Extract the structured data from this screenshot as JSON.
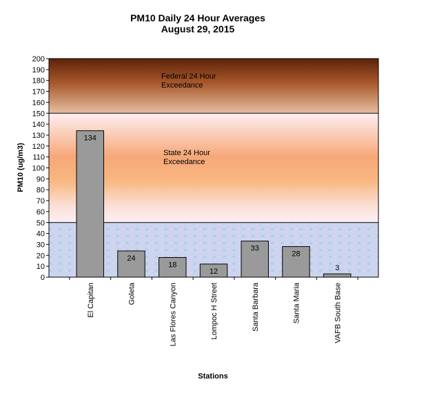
{
  "chart_data": {
    "type": "bar",
    "title": "PM10 Daily 24 Hour Averages",
    "subtitle": "August 29, 2015",
    "xlabel": "Stations",
    "ylabel": "PM10 (ug/m3)",
    "ylim": [
      0,
      200
    ],
    "ytick_step": 10,
    "categories": [
      "El Capitan",
      "Goleta",
      "Las Flores Canyon",
      "Lompoc H Street",
      "Santa Barbara",
      "Santa Maria",
      "VAFB South Base"
    ],
    "values": [
      134,
      24,
      18,
      12,
      33,
      28,
      3
    ],
    "data_labels": [
      "134",
      "24",
      "18",
      "12",
      "33",
      "28",
      "3"
    ],
    "thresholds": [
      {
        "name": "Federal 24 Hour Exceedance",
        "value": 150,
        "label_line1": "Federal 24 Hour",
        "label_line2": "Exceedance"
      },
      {
        "name": "State 24 Hour Exceedance",
        "value": 50,
        "label_line1": "State 24 Hour",
        "label_line2": "Exceedance"
      }
    ],
    "colors": {
      "bar": "#9a9a9a",
      "federal_zone_top": "#6b2a0c",
      "federal_zone_bottom": "#e2b595",
      "state_zone_mid": "#f6a878",
      "state_zone_edge": "#fde9ef",
      "below_zone": "#c7d4ef"
    },
    "grid": false,
    "legend": "none"
  }
}
